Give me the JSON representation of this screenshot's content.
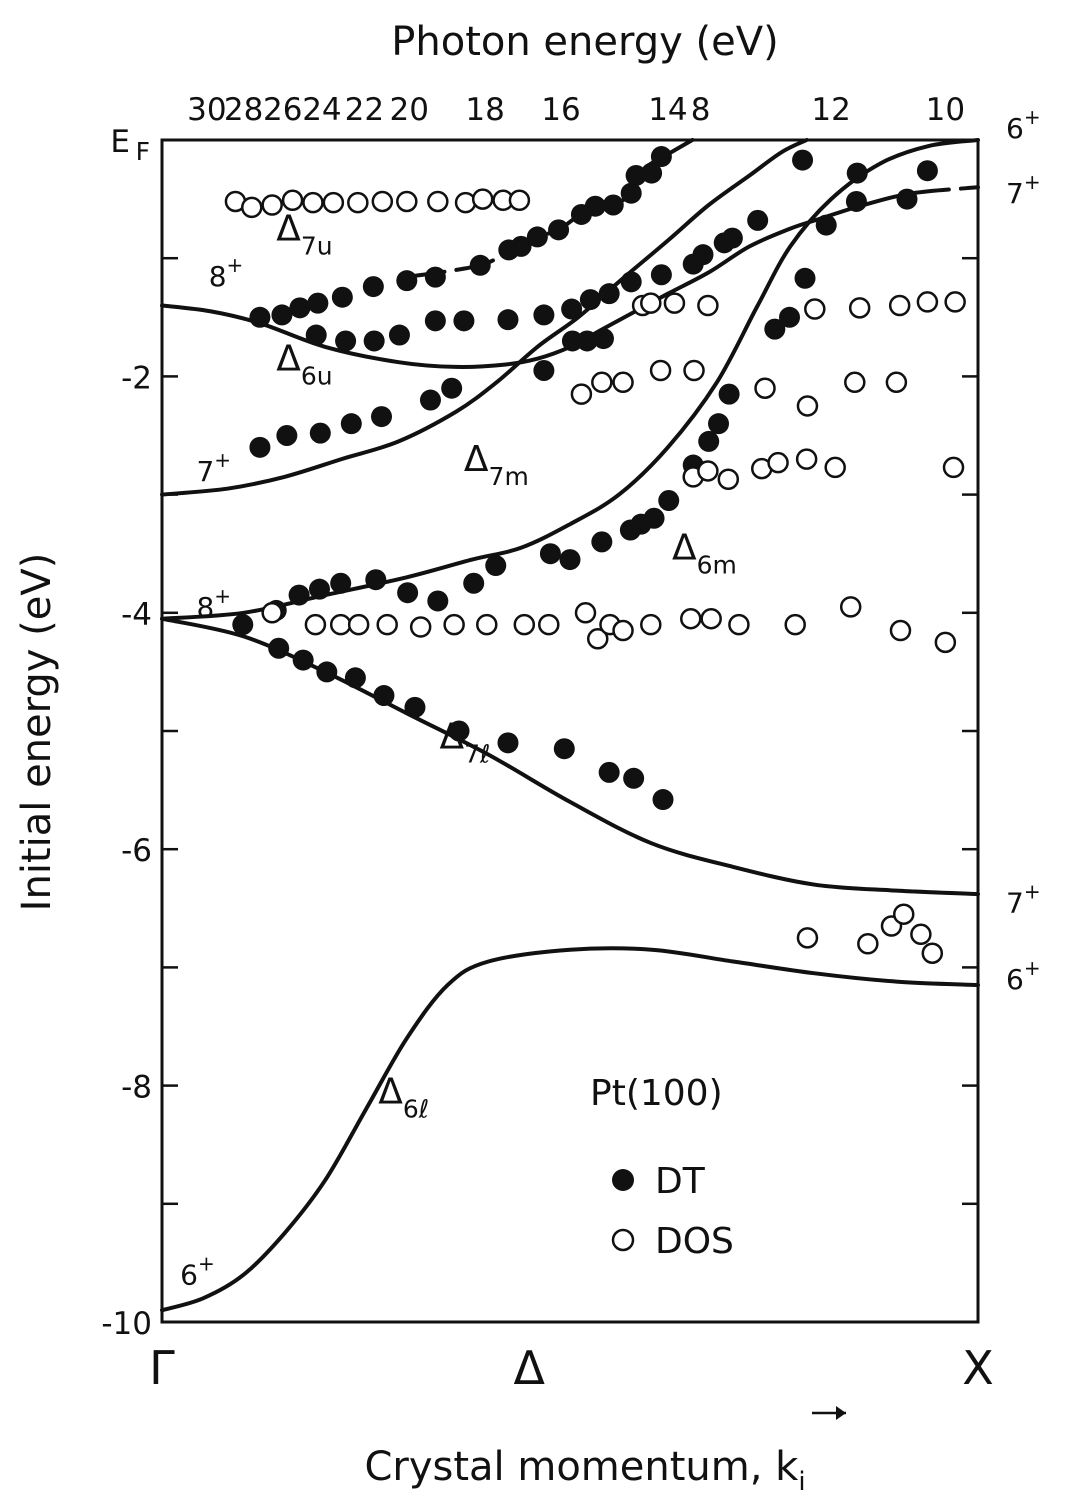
{
  "chart_data": {
    "type": "scatter",
    "title": "",
    "xlabel": "Crystal momentum, k⃗i",
    "x2label": "Photon energy (eV)",
    "ylabel": "Initial energy (eV)",
    "ylim": [
      -10,
      0
    ],
    "xlim": [
      0,
      1
    ],
    "y_ticks": [
      {
        "value": 0,
        "label": "E"
      },
      {
        "value": -2,
        "label": "-2"
      },
      {
        "value": -4,
        "label": "-4"
      },
      {
        "value": -6,
        "label": "-6"
      },
      {
        "value": -8,
        "label": "-8"
      },
      {
        "value": -10,
        "label": "-10"
      }
    ],
    "y_ticklabel_sub": "F",
    "x_ticks": [
      {
        "value": 0,
        "label": "Γ"
      },
      {
        "value": 0.45,
        "label": "Δ"
      },
      {
        "value": 1,
        "label": "X"
      }
    ],
    "x2_ticks": [
      {
        "k": 0.055,
        "label": "30"
      },
      {
        "k": 0.1,
        "label": "28"
      },
      {
        "k": 0.148,
        "label": "26"
      },
      {
        "k": 0.196,
        "label": "24"
      },
      {
        "k": 0.248,
        "label": "22"
      },
      {
        "k": 0.303,
        "label": "20"
      },
      {
        "k": 0.396,
        "label": "18"
      },
      {
        "k": 0.489,
        "label": "16"
      },
      {
        "k": 0.62,
        "label": "14"
      },
      {
        "k": 0.66,
        "label": "8"
      },
      {
        "k": 0.82,
        "label": "12"
      },
      {
        "k": 0.96,
        "label": "10"
      }
    ],
    "legend": {
      "position": "lower-right",
      "title": "Pt(100)",
      "entries": [
        {
          "name": "DT",
          "marker": "filled-circle"
        },
        {
          "name": "DOS",
          "marker": "open-circle"
        }
      ]
    },
    "band_labels": [
      {
        "symbol": "Δ",
        "sub": "7u",
        "k": 0.14,
        "E": -0.85
      },
      {
        "symbol": "Δ",
        "sub": "6u",
        "k": 0.14,
        "E": -1.95
      },
      {
        "symbol": "Δ",
        "sub": "7m",
        "k": 0.37,
        "E": -2.8
      },
      {
        "symbol": "Δ",
        "sub": "6m",
        "k": 0.625,
        "E": -3.55
      },
      {
        "symbol": "Δ",
        "sub": "7ℓ",
        "k": 0.34,
        "E": -5.15
      },
      {
        "symbol": "Δ",
        "sub": "6ℓ",
        "k": 0.265,
        "E": -8.15
      }
    ],
    "symmetry_labels": [
      {
        "main": "8",
        "sup": "+",
        "k": 0.045,
        "E": -1.15,
        "side": "left"
      },
      {
        "main": "7",
        "sup": "+",
        "k": 0.03,
        "E": -2.8,
        "side": "left"
      },
      {
        "main": "8",
        "sup": "+",
        "k": 0.03,
        "E": -3.95,
        "side": "left"
      },
      {
        "main": "6",
        "sup": "+",
        "k": 0.01,
        "E": -9.6,
        "side": "left"
      },
      {
        "main": "6",
        "sup": "+",
        "k": 1.0,
        "E": 0.1,
        "side": "right"
      },
      {
        "main": "7",
        "sup": "+",
        "k": 1.0,
        "E": -0.45,
        "side": "right"
      },
      {
        "main": "7",
        "sup": "+",
        "k": 1.0,
        "E": -6.45,
        "side": "right"
      },
      {
        "main": "6",
        "sup": "+",
        "k": 1.0,
        "E": -7.1,
        "side": "right"
      }
    ],
    "series": [
      {
        "name": "DT",
        "marker": "filled-circle",
        "points": [
          [
            0.12,
            -1.5
          ],
          [
            0.147,
            -1.48
          ],
          [
            0.169,
            -1.42
          ],
          [
            0.191,
            -1.38
          ],
          [
            0.221,
            -1.33
          ],
          [
            0.259,
            -1.24
          ],
          [
            0.3,
            -1.19
          ],
          [
            0.335,
            -1.16
          ],
          [
            0.39,
            -1.06
          ],
          [
            0.425,
            -0.93
          ],
          [
            0.44,
            -0.9
          ],
          [
            0.46,
            -0.82
          ],
          [
            0.486,
            -0.76
          ],
          [
            0.514,
            -0.63
          ],
          [
            0.531,
            -0.56
          ],
          [
            0.553,
            -0.55
          ],
          [
            0.575,
            -0.45
          ],
          [
            0.581,
            -0.3
          ],
          [
            0.6,
            -0.28
          ],
          [
            0.612,
            -0.14
          ],
          [
            0.189,
            -1.65
          ],
          [
            0.225,
            -1.7
          ],
          [
            0.26,
            -1.7
          ],
          [
            0.291,
            -1.65
          ],
          [
            0.335,
            -1.53
          ],
          [
            0.37,
            -1.53
          ],
          [
            0.424,
            -1.52
          ],
          [
            0.468,
            -1.48
          ],
          [
            0.502,
            -1.43
          ],
          [
            0.525,
            -1.35
          ],
          [
            0.548,
            -1.3
          ],
          [
            0.575,
            -1.2
          ],
          [
            0.612,
            -1.14
          ],
          [
            0.651,
            -1.05
          ],
          [
            0.663,
            -0.97
          ],
          [
            0.689,
            -0.87
          ],
          [
            0.699,
            -0.83
          ],
          [
            0.73,
            -0.68
          ],
          [
            0.12,
            -2.6
          ],
          [
            0.153,
            -2.5
          ],
          [
            0.194,
            -2.48
          ],
          [
            0.232,
            -2.4
          ],
          [
            0.269,
            -2.34
          ],
          [
            0.329,
            -2.2
          ],
          [
            0.355,
            -2.1
          ],
          [
            0.468,
            -1.95
          ],
          [
            0.503,
            -1.7
          ],
          [
            0.521,
            -1.7
          ],
          [
            0.541,
            -1.68
          ],
          [
            0.751,
            -1.6
          ],
          [
            0.769,
            -1.5
          ],
          [
            0.788,
            -1.17
          ],
          [
            0.814,
            -0.72
          ],
          [
            0.851,
            -0.52
          ],
          [
            0.852,
            -0.28
          ],
          [
            0.913,
            -0.5
          ],
          [
            0.938,
            -0.26
          ],
          [
            0.785,
            -0.17
          ],
          [
            0.695,
            -2.15
          ],
          [
            0.682,
            -2.4
          ],
          [
            0.67,
            -2.55
          ],
          [
            0.651,
            -2.75
          ],
          [
            0.621,
            -3.05
          ],
          [
            0.603,
            -3.2
          ],
          [
            0.587,
            -3.25
          ],
          [
            0.574,
            -3.3
          ],
          [
            0.539,
            -3.4
          ],
          [
            0.5,
            -3.55
          ],
          [
            0.476,
            -3.5
          ],
          [
            0.409,
            -3.6
          ],
          [
            0.382,
            -3.75
          ],
          [
            0.338,
            -3.9
          ],
          [
            0.301,
            -3.83
          ],
          [
            0.262,
            -3.72
          ],
          [
            0.219,
            -3.75
          ],
          [
            0.193,
            -3.8
          ],
          [
            0.168,
            -3.85
          ],
          [
            0.14,
            -3.98
          ],
          [
            0.099,
            -4.1
          ],
          [
            0.143,
            -4.3
          ],
          [
            0.173,
            -4.4
          ],
          [
            0.202,
            -4.5
          ],
          [
            0.237,
            -4.55
          ],
          [
            0.272,
            -4.7
          ],
          [
            0.31,
            -4.8
          ],
          [
            0.364,
            -5.0
          ],
          [
            0.424,
            -5.1
          ],
          [
            0.493,
            -5.15
          ],
          [
            0.548,
            -5.35
          ],
          [
            0.578,
            -5.4
          ],
          [
            0.614,
            -5.58
          ]
        ]
      },
      {
        "name": "DOS",
        "marker": "open-circle",
        "points": [
          [
            0.09,
            -0.52
          ],
          [
            0.11,
            -0.57
          ],
          [
            0.135,
            -0.55
          ],
          [
            0.16,
            -0.51
          ],
          [
            0.185,
            -0.53
          ],
          [
            0.21,
            -0.53
          ],
          [
            0.24,
            -0.53
          ],
          [
            0.27,
            -0.52
          ],
          [
            0.3,
            -0.52
          ],
          [
            0.338,
            -0.52
          ],
          [
            0.372,
            -0.53
          ],
          [
            0.393,
            -0.5
          ],
          [
            0.418,
            -0.51
          ],
          [
            0.438,
            -0.51
          ],
          [
            0.589,
            -1.4
          ],
          [
            0.599,
            -1.38
          ],
          [
            0.628,
            -1.38
          ],
          [
            0.669,
            -1.4
          ],
          [
            0.8,
            -1.43
          ],
          [
            0.855,
            -1.42
          ],
          [
            0.904,
            -1.4
          ],
          [
            0.938,
            -1.37
          ],
          [
            0.972,
            -1.37
          ],
          [
            0.514,
            -2.15
          ],
          [
            0.539,
            -2.05
          ],
          [
            0.565,
            -2.05
          ],
          [
            0.611,
            -1.95
          ],
          [
            0.652,
            -1.95
          ],
          [
            0.739,
            -2.1
          ],
          [
            0.791,
            -2.25
          ],
          [
            0.849,
            -2.05
          ],
          [
            0.9,
            -2.05
          ],
          [
            0.651,
            -2.85
          ],
          [
            0.669,
            -2.8
          ],
          [
            0.694,
            -2.87
          ],
          [
            0.735,
            -2.78
          ],
          [
            0.755,
            -2.73
          ],
          [
            0.79,
            -2.7
          ],
          [
            0.825,
            -2.77
          ],
          [
            0.97,
            -2.77
          ],
          [
            0.135,
            -4.0
          ],
          [
            0.188,
            -4.1
          ],
          [
            0.219,
            -4.1
          ],
          [
            0.241,
            -4.1
          ],
          [
            0.276,
            -4.1
          ],
          [
            0.317,
            -4.12
          ],
          [
            0.358,
            -4.1
          ],
          [
            0.398,
            -4.1
          ],
          [
            0.444,
            -4.1
          ],
          [
            0.474,
            -4.1
          ],
          [
            0.519,
            -4.0
          ],
          [
            0.534,
            -4.22
          ],
          [
            0.549,
            -4.1
          ],
          [
            0.565,
            -4.15
          ],
          [
            0.599,
            -4.1
          ],
          [
            0.648,
            -4.05
          ],
          [
            0.673,
            -4.05
          ],
          [
            0.707,
            -4.1
          ],
          [
            0.776,
            -4.1
          ],
          [
            0.844,
            -3.95
          ],
          [
            0.905,
            -4.15
          ],
          [
            0.96,
            -4.25
          ],
          [
            0.791,
            -6.75
          ],
          [
            0.865,
            -6.8
          ],
          [
            0.894,
            -6.65
          ],
          [
            0.909,
            -6.55
          ],
          [
            0.93,
            -6.72
          ],
          [
            0.944,
            -6.88
          ]
        ]
      }
    ],
    "bands": [
      {
        "name": "Δ_7u",
        "dash": "dash",
        "points": [
          [
            0.3,
            -1.16
          ],
          [
            0.39,
            -1.06
          ],
          [
            0.425,
            -0.93
          ],
          [
            0.46,
            -0.82
          ],
          [
            0.486,
            -0.76
          ],
          [
            0.514,
            -0.63
          ],
          [
            0.553,
            -0.55
          ],
          [
            0.575,
            -0.45
          ],
          [
            0.59,
            -0.25
          ],
          [
            0.62,
            -0.12
          ],
          [
            0.65,
            0.0
          ]
        ]
      },
      {
        "name": "Δ_6u",
        "dash": "solid",
        "points": [
          [
            0.0,
            -1.4
          ],
          [
            0.06,
            -1.45
          ],
          [
            0.12,
            -1.55
          ],
          [
            0.2,
            -1.75
          ],
          [
            0.29,
            -1.88
          ],
          [
            0.36,
            -1.92
          ],
          [
            0.42,
            -1.9
          ],
          [
            0.46,
            -1.85
          ],
          [
            0.5,
            -1.75
          ],
          [
            0.54,
            -1.6
          ],
          [
            0.58,
            -1.45
          ],
          [
            0.62,
            -1.3
          ],
          [
            0.67,
            -1.12
          ],
          [
            0.72,
            -0.9
          ],
          [
            0.77,
            -0.75
          ],
          [
            0.8,
            -0.68
          ]
        ]
      },
      {
        "name": "Δ_6u upper",
        "dash": "dash",
        "points": [
          [
            0.8,
            -0.68
          ],
          [
            0.86,
            -0.55
          ],
          [
            0.92,
            -0.45
          ],
          [
            1.0,
            -0.4
          ]
        ]
      },
      {
        "name": "Δ_7m",
        "dash": "solid",
        "points": [
          [
            0.0,
            -3.0
          ],
          [
            0.08,
            -2.95
          ],
          [
            0.15,
            -2.85
          ],
          [
            0.22,
            -2.7
          ],
          [
            0.29,
            -2.55
          ],
          [
            0.36,
            -2.3
          ],
          [
            0.41,
            -2.05
          ],
          [
            0.46,
            -1.75
          ],
          [
            0.51,
            -1.5
          ],
          [
            0.56,
            -1.2
          ],
          [
            0.62,
            -0.85
          ],
          [
            0.67,
            -0.55
          ],
          [
            0.72,
            -0.3
          ],
          [
            0.76,
            -0.1
          ],
          [
            0.79,
            0.0
          ]
        ]
      },
      {
        "name": "Δ_6m",
        "dash": "solid",
        "points": [
          [
            0.0,
            -4.05
          ],
          [
            0.1,
            -4.0
          ],
          [
            0.2,
            -3.85
          ],
          [
            0.3,
            -3.7
          ],
          [
            0.38,
            -3.55
          ],
          [
            0.44,
            -3.45
          ],
          [
            0.5,
            -3.25
          ],
          [
            0.56,
            -3.0
          ],
          [
            0.62,
            -2.6
          ],
          [
            0.68,
            -2.05
          ],
          [
            0.73,
            -1.4
          ],
          [
            0.77,
            -0.9
          ],
          [
            0.82,
            -0.5
          ],
          [
            0.88,
            -0.2
          ],
          [
            0.94,
            -0.05
          ],
          [
            1.0,
            0.0
          ]
        ]
      },
      {
        "name": "Δ_7ℓ",
        "dash": "solid",
        "points": [
          [
            0.0,
            -4.05
          ],
          [
            0.1,
            -4.2
          ],
          [
            0.2,
            -4.5
          ],
          [
            0.3,
            -4.85
          ],
          [
            0.4,
            -5.2
          ],
          [
            0.5,
            -5.6
          ],
          [
            0.6,
            -5.95
          ],
          [
            0.7,
            -6.15
          ],
          [
            0.8,
            -6.3
          ],
          [
            0.9,
            -6.35
          ],
          [
            1.0,
            -6.38
          ]
        ]
      },
      {
        "name": "Δ_6ℓ",
        "dash": "solid",
        "points": [
          [
            0.0,
            -9.9
          ],
          [
            0.05,
            -9.8
          ],
          [
            0.1,
            -9.6
          ],
          [
            0.15,
            -9.25
          ],
          [
            0.2,
            -8.8
          ],
          [
            0.25,
            -8.2
          ],
          [
            0.3,
            -7.6
          ],
          [
            0.35,
            -7.15
          ],
          [
            0.4,
            -6.95
          ],
          [
            0.5,
            -6.85
          ],
          [
            0.6,
            -6.85
          ],
          [
            0.7,
            -6.95
          ],
          [
            0.8,
            -7.05
          ],
          [
            0.9,
            -7.12
          ],
          [
            1.0,
            -7.15
          ]
        ]
      }
    ],
    "grid": false
  }
}
